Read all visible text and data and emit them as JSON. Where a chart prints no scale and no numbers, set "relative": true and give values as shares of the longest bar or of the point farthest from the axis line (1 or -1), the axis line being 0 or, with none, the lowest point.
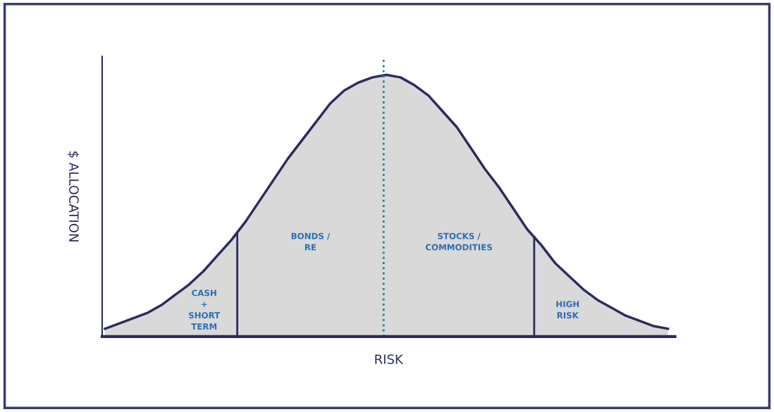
{
  "chart_data": {
    "type": "area",
    "relative": true,
    "xlabel": "RISK",
    "ylabel": "$ ALLOCATION",
    "categories": [
      null,
      null,
      null,
      null,
      null,
      null,
      null,
      null,
      null,
      null,
      null,
      null,
      null,
      null,
      null,
      null,
      null,
      null,
      null,
      null,
      null,
      null,
      null,
      null,
      null,
      null,
      null,
      null,
      null,
      null,
      null,
      null,
      null,
      null,
      null,
      null,
      null,
      null,
      null,
      null,
      null
    ],
    "series": [
      {
        "color": "#2b2d5c",
        "values": [
          0.03,
          0.05,
          0.07,
          0.09,
          0.12,
          0.16,
          0.2,
          0.25,
          0.31,
          0.37,
          0.44,
          0.52,
          0.6,
          0.68,
          0.75,
          0.82,
          0.89,
          0.94,
          0.97,
          0.99,
          1.0,
          0.99,
          0.96,
          0.92,
          0.86,
          0.8,
          0.72,
          0.64,
          0.57,
          0.49,
          0.41,
          0.35,
          0.28,
          0.23,
          0.18,
          0.14,
          0.11,
          0.08,
          0.06,
          0.04,
          0.03
        ]
      }
    ],
    "annotations": [
      "CASH\n+\nSHORT\nTERM",
      "BONDS /\nRE",
      "STOCKS /\nCOMMODITIES",
      "HIGH\nRISK"
    ],
    "legend": false
  }
}
